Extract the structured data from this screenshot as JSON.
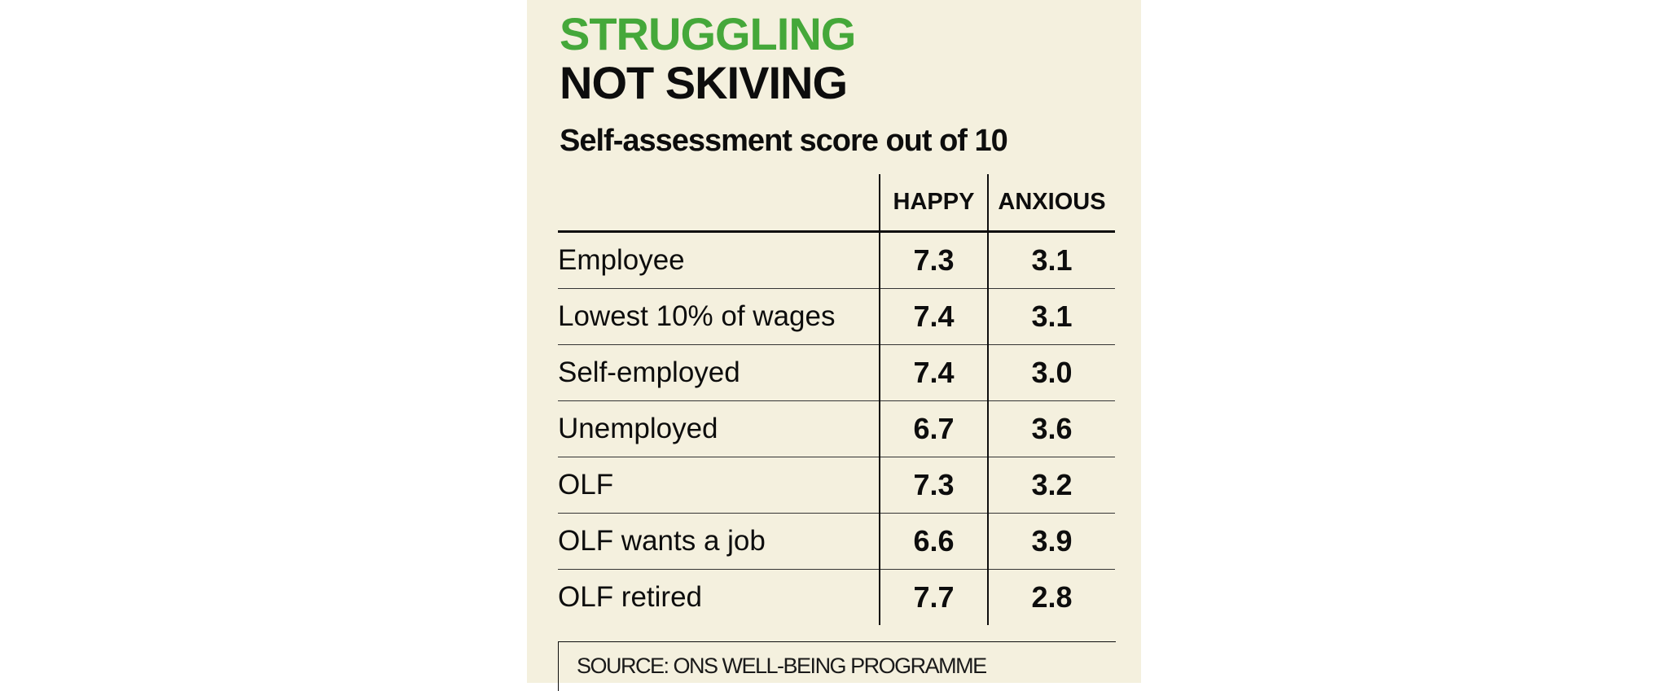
{
  "chart_data": {
    "type": "table",
    "title": "STRUGGLING NOT SKIVING",
    "title_lines": [
      "STRUGGLING",
      "NOT SKIVING"
    ],
    "subtitle": "Self-assessment score out of 10",
    "columns": [
      "HAPPY",
      "ANXIOUS"
    ],
    "rows": [
      {
        "label": "Employee",
        "values": [
          "7.3",
          "3.1"
        ]
      },
      {
        "label": "Lowest 10% of wages",
        "values": [
          "7.4",
          "3.1"
        ]
      },
      {
        "label": "Self-employed",
        "values": [
          "7.4",
          "3.0"
        ]
      },
      {
        "label": "Unemployed",
        "values": [
          "6.7",
          "3.6"
        ]
      },
      {
        "label": "OLF",
        "values": [
          "7.3",
          "3.2"
        ]
      },
      {
        "label": "OLF wants a job",
        "values": [
          "6.6",
          "3.9"
        ]
      },
      {
        "label": "OLF retired",
        "values": [
          "7.7",
          "2.8"
        ]
      }
    ],
    "source": "SOURCE: ONS WELL-BEING PROGRAMME"
  },
  "colors": {
    "panel_background": "#f4f0de",
    "title_accent": "#45a83a",
    "text": "#0d0d0d"
  }
}
